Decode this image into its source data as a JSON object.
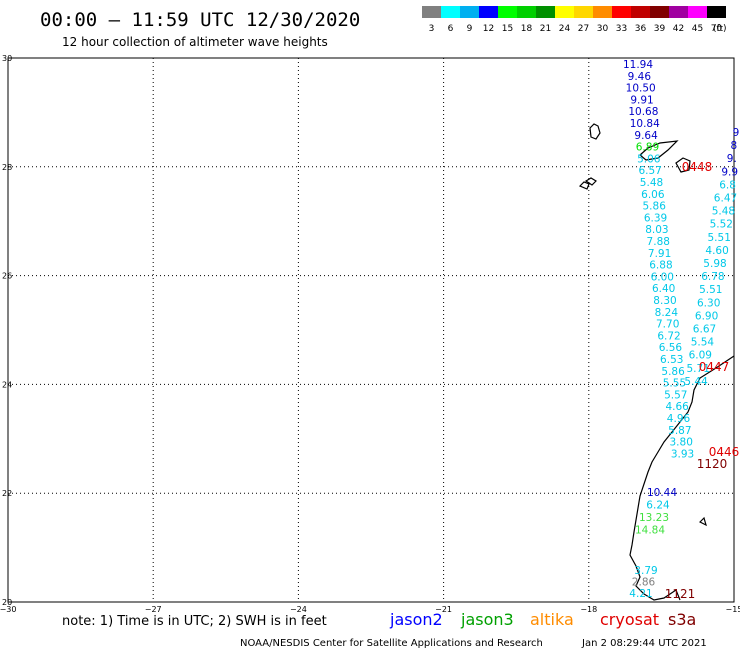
{
  "header": {
    "title": "00:00 – 11:59 UTC 12/30/2020",
    "subtitle": "12 hour collection of altimeter wave heights"
  },
  "colorbar": {
    "unit": "(ft)",
    "swatches": [
      {
        "label": "3",
        "color": "#808080"
      },
      {
        "label": "6",
        "color": "#00ffff"
      },
      {
        "label": "9",
        "color": "#00b0f0"
      },
      {
        "label": "12",
        "color": "#0000ff"
      },
      {
        "label": "15",
        "color": "#00ff00"
      },
      {
        "label": "18",
        "color": "#00d000"
      },
      {
        "label": "21",
        "color": "#009000"
      },
      {
        "label": "24",
        "color": "#ffff00"
      },
      {
        "label": "27",
        "color": "#ffd700"
      },
      {
        "label": "30",
        "color": "#ff8c00"
      },
      {
        "label": "33",
        "color": "#ff0000"
      },
      {
        "label": "36",
        "color": "#c00000"
      },
      {
        "label": "39",
        "color": "#800000"
      },
      {
        "label": "42",
        "color": "#a000a0"
      },
      {
        "label": "45",
        "color": "#ff00ff"
      },
      {
        "label": "70",
        "color": "#000000"
      }
    ]
  },
  "axes": {
    "lat_ticks": [
      "30",
      "28",
      "26",
      "24",
      "22",
      "20"
    ],
    "lon_ticks": [
      "−30",
      "−27",
      "−24",
      "−21",
      "−18",
      "−15"
    ]
  },
  "tracks": {
    "west": [
      {
        "v": "11.94",
        "c": "#0000c8"
      },
      {
        "v": "9.46",
        "c": "#0000c8"
      },
      {
        "v": "10.50",
        "c": "#0000c8"
      },
      {
        "v": "9.91",
        "c": "#0000c8"
      },
      {
        "v": "10.68",
        "c": "#0000c8"
      },
      {
        "v": "10.84",
        "c": "#0000c8"
      },
      {
        "v": "9.64",
        "c": "#0000c8"
      },
      {
        "v": "6.89",
        "c": "#00e000"
      },
      {
        "v": "5.06",
        "c": "#00c8e8"
      },
      {
        "v": "6.57",
        "c": "#00c8e8"
      },
      {
        "v": "5.48",
        "c": "#00c8e8"
      },
      {
        "v": "6.06",
        "c": "#00c8e8"
      },
      {
        "v": "5.86",
        "c": "#00c8e8"
      },
      {
        "v": "6.39",
        "c": "#00c8e8"
      },
      {
        "v": "8.03",
        "c": "#00c8e8"
      },
      {
        "v": "7.88",
        "c": "#00c8e8"
      },
      {
        "v": "7.91",
        "c": "#00c8e8"
      },
      {
        "v": "6.88",
        "c": "#00c8e8"
      },
      {
        "v": "6.00",
        "c": "#00c8e8"
      },
      {
        "v": "6.40",
        "c": "#00c8e8"
      },
      {
        "v": "8.30",
        "c": "#00c8e8"
      },
      {
        "v": "8.24",
        "c": "#00c8e8"
      },
      {
        "v": "7.70",
        "c": "#00c8e8"
      },
      {
        "v": "6.72",
        "c": "#00c8e8"
      },
      {
        "v": "6.56",
        "c": "#00c8e8"
      },
      {
        "v": "6.53",
        "c": "#00c8e8"
      },
      {
        "v": "5.86",
        "c": "#00c8e8"
      },
      {
        "v": "5.55",
        "c": "#00c8e8"
      },
      {
        "v": "5.57",
        "c": "#00c8e8"
      },
      {
        "v": "4.66",
        "c": "#00c8e8"
      },
      {
        "v": "4.96",
        "c": "#00c8e8"
      },
      {
        "v": "5.87",
        "c": "#00c8e8"
      },
      {
        "v": "3.80",
        "c": "#00c8e8"
      },
      {
        "v": "3.93",
        "c": "#00c8e8"
      }
    ],
    "east": [
      {
        "v": "9",
        "c": "#0000c8"
      },
      {
        "v": "8",
        "c": "#0000c8"
      },
      {
        "v": "9.",
        "c": "#0000c8"
      },
      {
        "v": "9.9",
        "c": "#0000c8"
      },
      {
        "v": "6.8",
        "c": "#00c8e8"
      },
      {
        "v": "6.47",
        "c": "#00c8e8"
      },
      {
        "v": "5.48",
        "c": "#00c8e8"
      },
      {
        "v": "5.52",
        "c": "#00c8e8"
      },
      {
        "v": "5.51",
        "c": "#00c8e8"
      },
      {
        "v": "4.60",
        "c": "#00c8e8"
      },
      {
        "v": "5.98",
        "c": "#00c8e8"
      },
      {
        "v": "6.78",
        "c": "#00c8e8"
      },
      {
        "v": "5.51",
        "c": "#00c8e8"
      },
      {
        "v": "6.30",
        "c": "#00c8e8"
      },
      {
        "v": "6.90",
        "c": "#00c8e8"
      },
      {
        "v": "6.67",
        "c": "#00c8e8"
      },
      {
        "v": "5.54",
        "c": "#00c8e8"
      },
      {
        "v": "6.09",
        "c": "#00c8e8"
      },
      {
        "v": "5.71",
        "c": "#00c8e8"
      },
      {
        "v": "5.44",
        "c": "#00c8e8"
      }
    ],
    "south": [
      {
        "v": "10.44",
        "c": "#0000c8"
      },
      {
        "v": "6.24",
        "c": "#00c8e8"
      },
      {
        "v": "13.23",
        "c": "#40e040"
      },
      {
        "v": "14.84",
        "c": "#40e040"
      },
      {
        "v": "3.79",
        "c": "#00c8e8"
      },
      {
        "v": "2.86",
        "c": "#808080"
      },
      {
        "v": "4.21",
        "c": "#00c8e8"
      }
    ],
    "times": [
      {
        "v": "0448",
        "c": "#e00000"
      },
      {
        "v": "0447",
        "c": "#e00000"
      },
      {
        "v": "0446",
        "c": "#e00000"
      },
      {
        "v": "1120",
        "c": "#800000"
      },
      {
        "v": "1121",
        "c": "#800000"
      }
    ]
  },
  "footer": {
    "note": "note: 1) Time is in UTC; 2) SWH is in feet",
    "credit": "NOAA/NESDIS Center for Satellite Applications and Research",
    "timestamp": "Jan  2 08:29:44 UTC 2021",
    "legend": [
      {
        "name": "jason2",
        "color": "#0000ff"
      },
      {
        "name": "jason3",
        "color": "#00a000"
      },
      {
        "name": "altika",
        "color": "#ff8c00"
      },
      {
        "name": "cryosat",
        "color": "#e00000"
      },
      {
        "name": "s3a",
        "color": "#800000"
      }
    ]
  }
}
